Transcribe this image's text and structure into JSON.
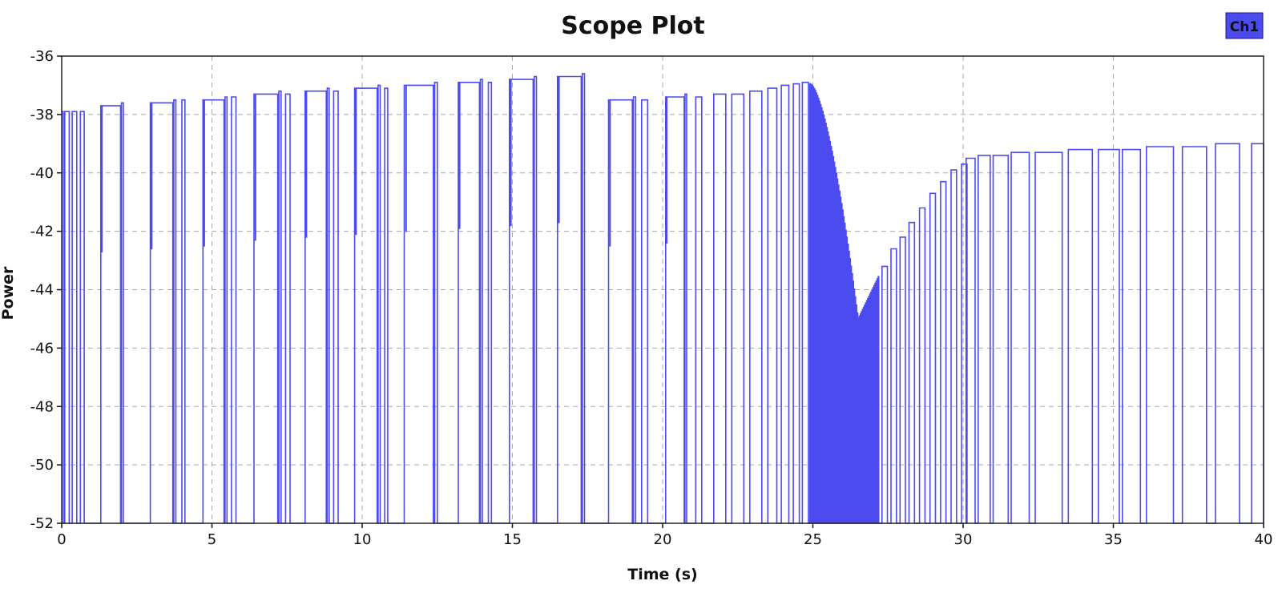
{
  "colors": {
    "series": "#4b4bf0",
    "legend_fill": "#4b4bf0",
    "grid": "#a8a8a8",
    "frame": "#222222"
  },
  "chart_data": {
    "type": "line",
    "title": "Scope Plot",
    "xlabel": "Time (s)",
    "ylabel": "Power",
    "xlim": [
      0,
      40
    ],
    "ylim": [
      -52,
      -36
    ],
    "xticks": [
      0,
      5,
      10,
      15,
      20,
      25,
      30,
      35,
      40
    ],
    "yticks": [
      -36,
      -38,
      -40,
      -42,
      -44,
      -46,
      -48,
      -50,
      -52
    ],
    "grid": true,
    "legend_position": "top-right",
    "series": [
      {
        "name": "Ch1",
        "color": "#4b4bf0",
        "style": "pulse train: high plateaus between drops to the -52 floor",
        "pulses": [
          {
            "t0": 0.1,
            "t1": 0.25,
            "level": -37.9
          },
          {
            "t0": 0.35,
            "t1": 0.5,
            "level": -37.9
          },
          {
            "t0": 0.62,
            "t1": 0.75,
            "level": -37.9
          },
          {
            "t0": 1.3,
            "t1": 2.05,
            "level": -37.7
          },
          {
            "t0": 2.95,
            "t1": 3.8,
            "level": -37.6
          },
          {
            "t0": 4.0,
            "t1": 4.1,
            "level": -37.5
          },
          {
            "t0": 4.7,
            "t1": 5.5,
            "level": -37.5
          },
          {
            "t0": 5.65,
            "t1": 5.8,
            "level": -37.4
          },
          {
            "t0": 6.4,
            "t1": 7.3,
            "level": -37.3
          },
          {
            "t0": 7.45,
            "t1": 7.6,
            "level": -37.3
          },
          {
            "t0": 8.1,
            "t1": 8.9,
            "level": -37.2
          },
          {
            "t0": 9.05,
            "t1": 9.2,
            "level": -37.2
          },
          {
            "t0": 9.75,
            "t1": 10.6,
            "level": -37.1
          },
          {
            "t0": 10.75,
            "t1": 10.85,
            "level": -37.1
          },
          {
            "t0": 11.4,
            "t1": 12.5,
            "level": -37.0
          },
          {
            "t0": 13.2,
            "t1": 14.0,
            "level": -36.9
          },
          {
            "t0": 14.2,
            "t1": 14.3,
            "level": -36.9
          },
          {
            "t0": 14.9,
            "t1": 15.8,
            "level": -36.8
          },
          {
            "t0": 16.5,
            "t1": 17.4,
            "level": -36.7
          },
          {
            "t0": 18.2,
            "t1": 19.1,
            "level": -37.5
          },
          {
            "t0": 19.3,
            "t1": 19.5,
            "level": -37.5
          },
          {
            "t0": 20.1,
            "t1": 20.8,
            "level": -37.4
          },
          {
            "t0": 21.1,
            "t1": 21.3,
            "level": -37.4
          },
          {
            "t0": 21.7,
            "t1": 22.1,
            "level": -37.3
          },
          {
            "t0": 22.3,
            "t1": 22.7,
            "level": -37.3
          },
          {
            "t0": 22.9,
            "t1": 23.3,
            "level": -37.2
          },
          {
            "t0": 23.5,
            "t1": 23.8,
            "level": -37.1
          },
          {
            "t0": 23.95,
            "t1": 24.2,
            "level": -37.0
          },
          {
            "t0": 24.35,
            "t1": 24.55,
            "level": -36.95
          },
          {
            "t0": 24.65,
            "t1": 24.85,
            "level": -36.9
          }
        ],
        "dense_segment": {
          "t0": 24.9,
          "t1": 27.2,
          "start_level": -36.95,
          "min_level": -45.0,
          "min_t": 26.5
        },
        "recovery_pulses": [
          {
            "t": 27.3,
            "level": -43.2
          },
          {
            "t": 27.6,
            "level": -42.6
          },
          {
            "t": 27.9,
            "level": -42.2
          },
          {
            "t": 28.2,
            "level": -41.7
          },
          {
            "t": 28.55,
            "level": -41.2
          },
          {
            "t": 28.9,
            "level": -40.7
          },
          {
            "t": 29.25,
            "level": -40.3
          },
          {
            "t": 29.6,
            "level": -39.9
          },
          {
            "t": 29.95,
            "level": -39.7
          }
        ],
        "late_pulses": [
          {
            "t0": 30.1,
            "t1": 30.4,
            "level": -39.5
          },
          {
            "t0": 30.5,
            "t1": 30.9,
            "level": -39.4
          },
          {
            "t0": 31.0,
            "t1": 31.5,
            "level": -39.4
          },
          {
            "t0": 31.6,
            "t1": 32.2,
            "level": -39.3
          },
          {
            "t0": 32.4,
            "t1": 33.3,
            "level": -39.3
          },
          {
            "t0": 33.5,
            "t1": 34.3,
            "level": -39.2
          },
          {
            "t0": 34.5,
            "t1": 35.2,
            "level": -39.2
          },
          {
            "t0": 35.3,
            "t1": 35.9,
            "level": -39.2
          },
          {
            "t0": 36.1,
            "t1": 37.0,
            "level": -39.1
          },
          {
            "t0": 37.3,
            "t1": 38.1,
            "level": -39.1
          },
          {
            "t0": 38.4,
            "t1": 39.2,
            "level": -39.0
          },
          {
            "t0": 39.6,
            "t1": 40.0,
            "level": -39.0
          }
        ]
      }
    ]
  }
}
